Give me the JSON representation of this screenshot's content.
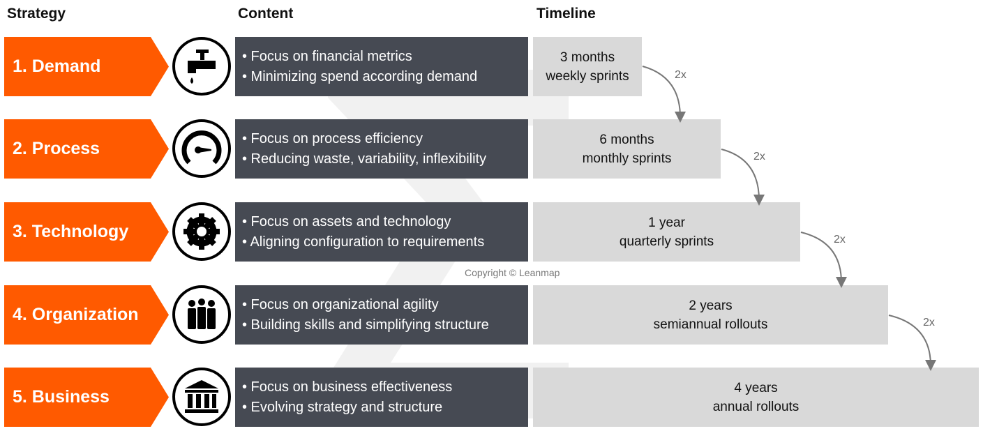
{
  "headers": {
    "strategy": "Strategy",
    "content": "Content",
    "timeline": "Timeline"
  },
  "colors": {
    "strategy": "#FF5A00",
    "content": "#464A53",
    "timeline": "#D9D9D9"
  },
  "rows": [
    {
      "strategy": "1. Demand",
      "icon": "faucet-icon",
      "bullets": [
        "• Focus on financial metrics",
        "• Minimizing spend according demand"
      ],
      "duration": "3 months",
      "cadence": "weekly sprints"
    },
    {
      "strategy": "2. Process",
      "icon": "speedometer-icon",
      "bullets": [
        "• Focus on process efficiency",
        "• Reducing waste, variability, inflexibility"
      ],
      "duration": "6 months",
      "cadence": "monthly sprints"
    },
    {
      "strategy": "3. Technology",
      "icon": "gear-icon",
      "bullets": [
        "• Focus on assets and technology",
        "• Aligning configuration to requirements"
      ],
      "duration": "1 year",
      "cadence": "quarterly sprints"
    },
    {
      "strategy": "4. Organization",
      "icon": "people-icon",
      "bullets": [
        "• Focus on organizational agility",
        "• Building skills and simplifying structure"
      ],
      "duration": "2 years",
      "cadence": "semiannual rollouts"
    },
    {
      "strategy": "5. Business",
      "icon": "bank-icon",
      "bullets": [
        "• Focus on business effectiveness",
        "• Evolving strategy and structure"
      ],
      "duration": "4 years",
      "cadence": "annual rollouts"
    }
  ],
  "multiplier": "2x",
  "copyright": "Copyright © Leanmap"
}
